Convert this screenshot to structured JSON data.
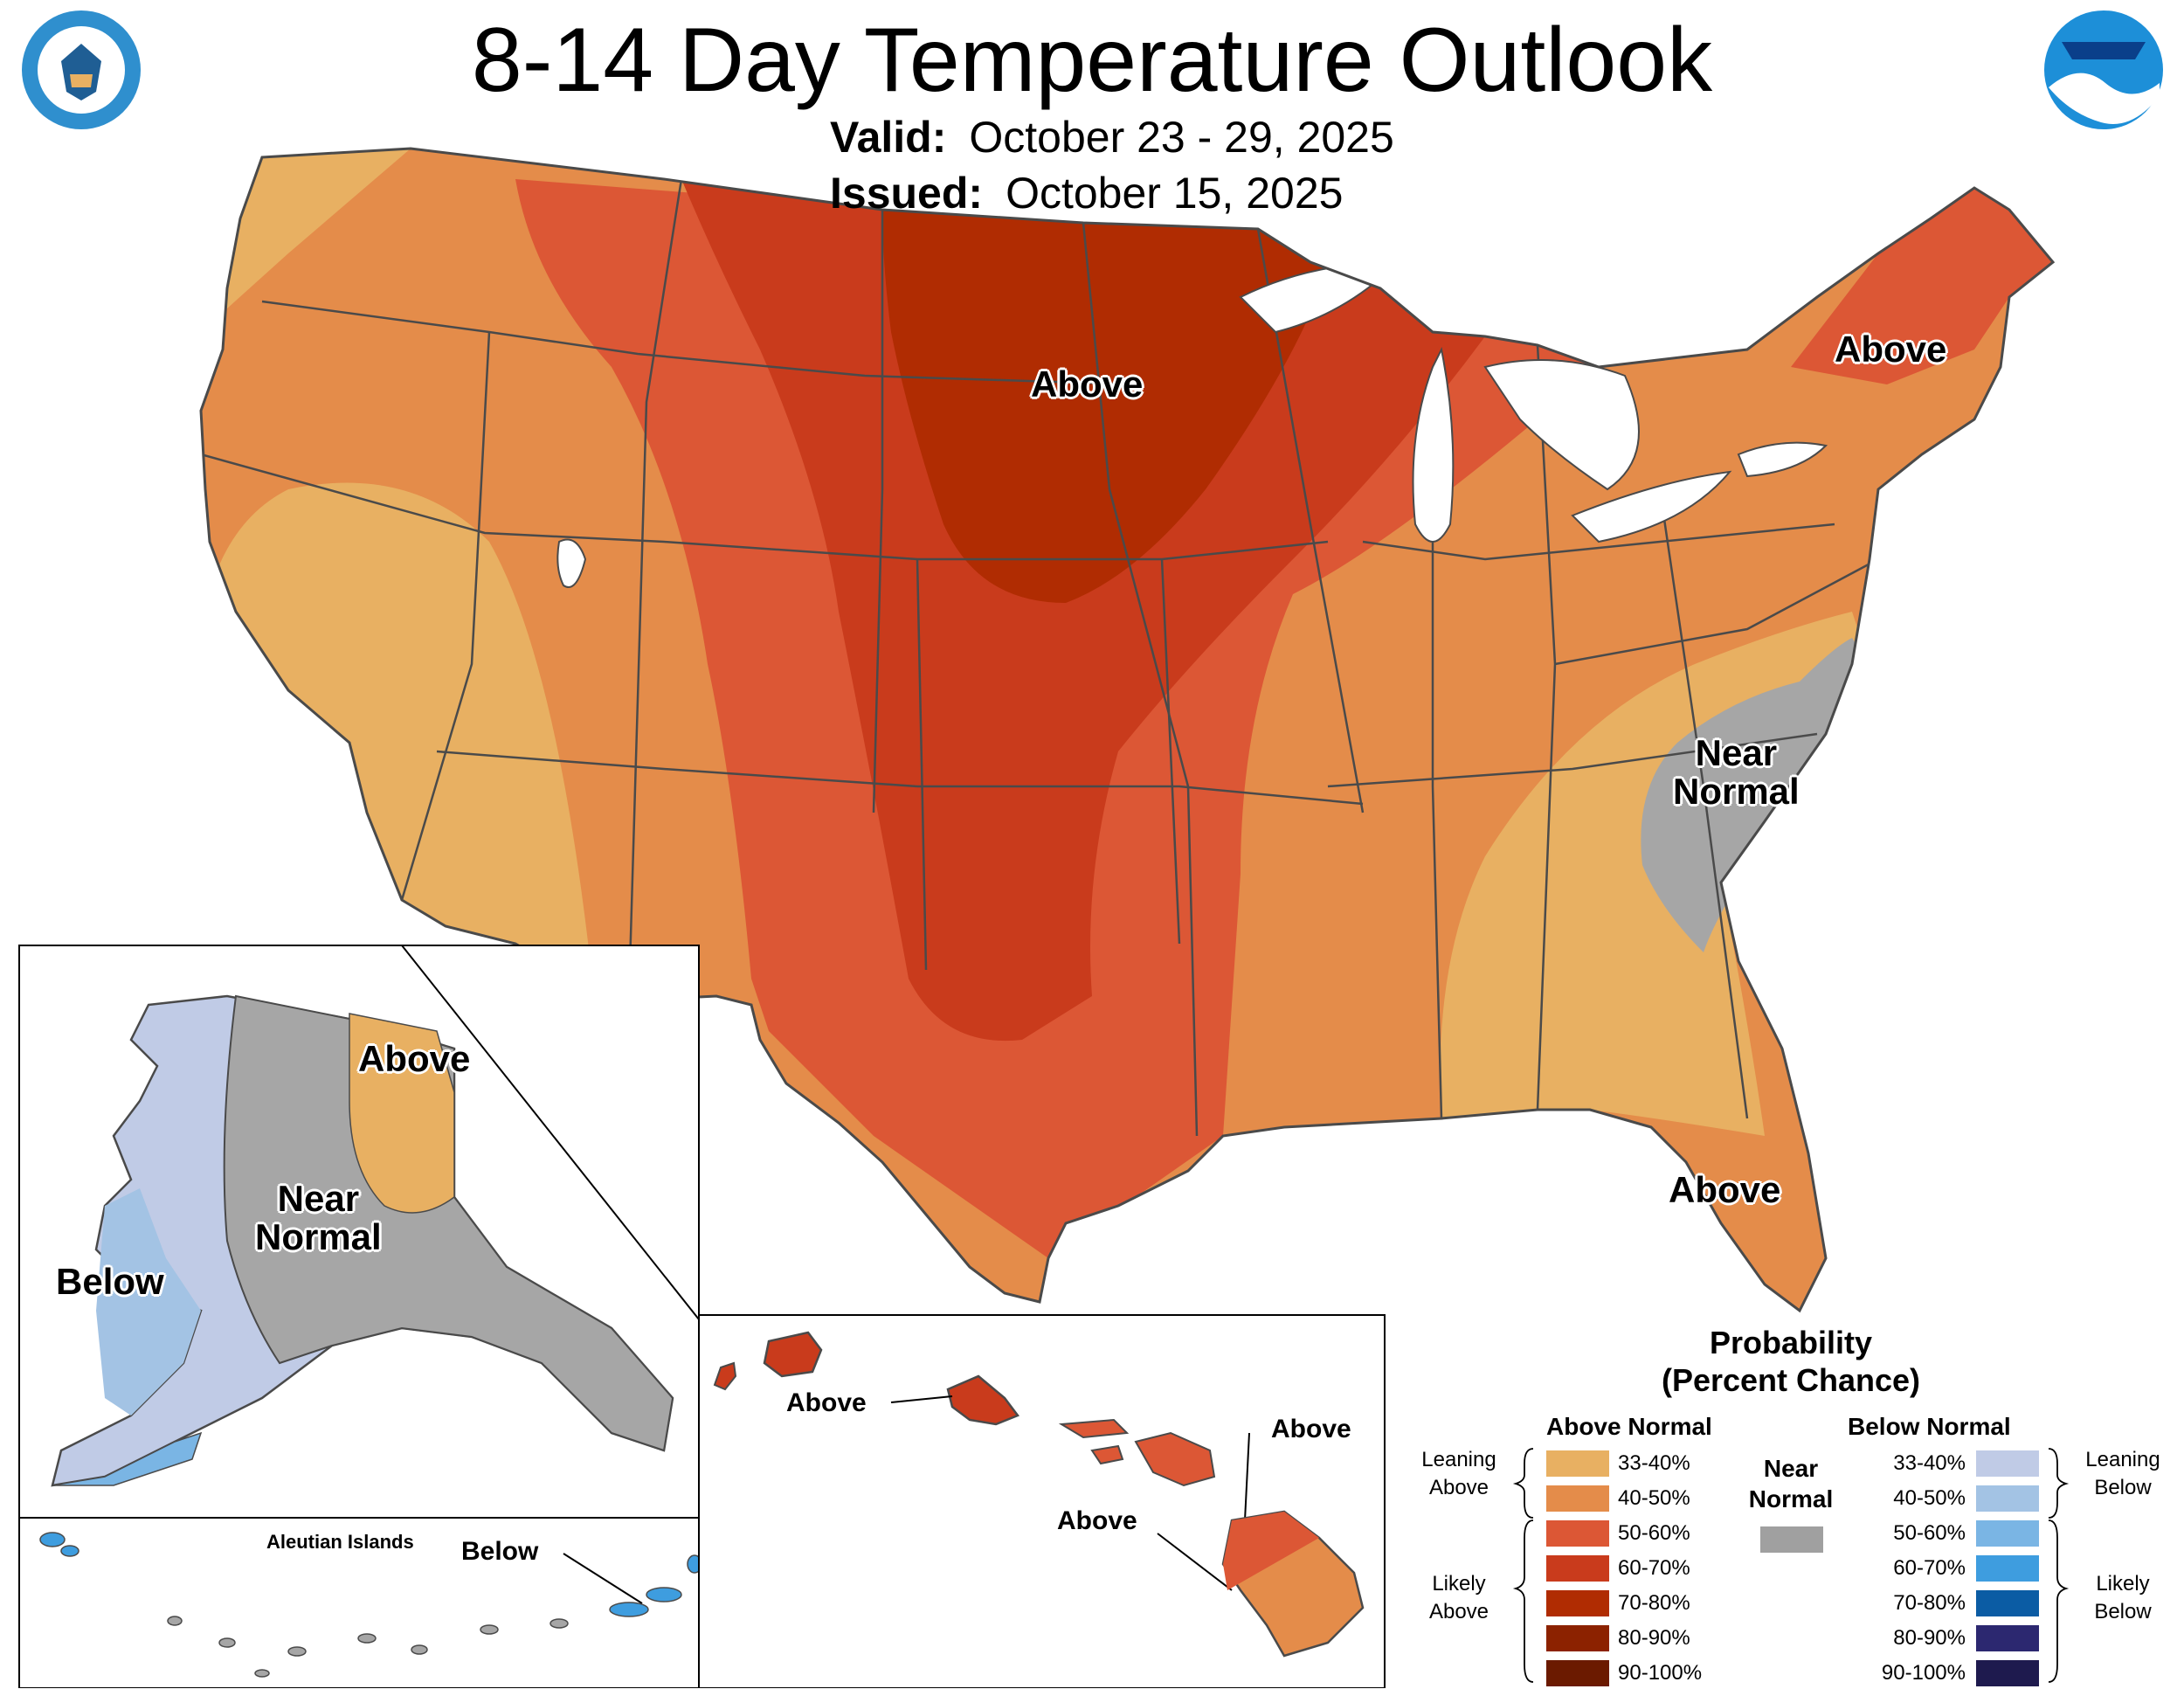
{
  "header": {
    "title": "8-14 Day Temperature Outlook",
    "valid_label": "Valid:",
    "valid_value": "October 23 - 29, 2025",
    "issued_label": "Issued:",
    "issued_value": "October 15, 2025"
  },
  "logos": {
    "commerce_seal": "DEPARTMENT OF COMMERCE · UNITED STATES OF AMERICA",
    "noaa": "NOAA"
  },
  "map_labels": {
    "conus_north": "Above",
    "conus_northeast": "Above",
    "conus_florida": "Above",
    "conus_southeast_line1": "Near",
    "conus_southeast_line2": "Normal",
    "alaska_east": "Above",
    "alaska_center_line1": "Near",
    "alaska_center_line2": "Normal",
    "alaska_west": "Below",
    "aleutian_title": "Aleutian Islands",
    "aleutian_label": "Below",
    "hawaii_oahu": "Above",
    "hawaii_maui": "Above",
    "hawaii_big_island": "Above"
  },
  "legend": {
    "title_line1": "Probability",
    "title_line2": "(Percent Chance)",
    "above_header": "Above Normal",
    "below_header": "Below Normal",
    "near_line1": "Near",
    "near_line2": "Normal",
    "near_color": "#a0a0a0",
    "leaning_above_line1": "Leaning",
    "leaning_above_line2": "Above",
    "likely_above_line1": "Likely",
    "likely_above_line2": "Above",
    "leaning_below_line1": "Leaning",
    "leaning_below_line2": "Below",
    "likely_below_line1": "Likely",
    "likely_below_line2": "Below",
    "above": [
      {
        "range": "33-40%",
        "color": "#e8b062"
      },
      {
        "range": "40-50%",
        "color": "#e48c4a"
      },
      {
        "range": "50-60%",
        "color": "#dc5735"
      },
      {
        "range": "60-70%",
        "color": "#c93b1c"
      },
      {
        "range": "70-80%",
        "color": "#b02c02"
      },
      {
        "range": "80-90%",
        "color": "#8c2200"
      },
      {
        "range": "90-100%",
        "color": "#6b1a00"
      }
    ],
    "below": [
      {
        "range": "33-40%",
        "color": "#c0cbe6"
      },
      {
        "range": "40-50%",
        "color": "#a3c3e4"
      },
      {
        "range": "50-60%",
        "color": "#7ab5e4"
      },
      {
        "range": "60-70%",
        "color": "#3e9ddf"
      },
      {
        "range": "70-80%",
        "color": "#0b5ca4"
      },
      {
        "range": "80-90%",
        "color": "#2c2870"
      },
      {
        "range": "90-100%",
        "color": "#1e1a4e"
      }
    ]
  }
}
